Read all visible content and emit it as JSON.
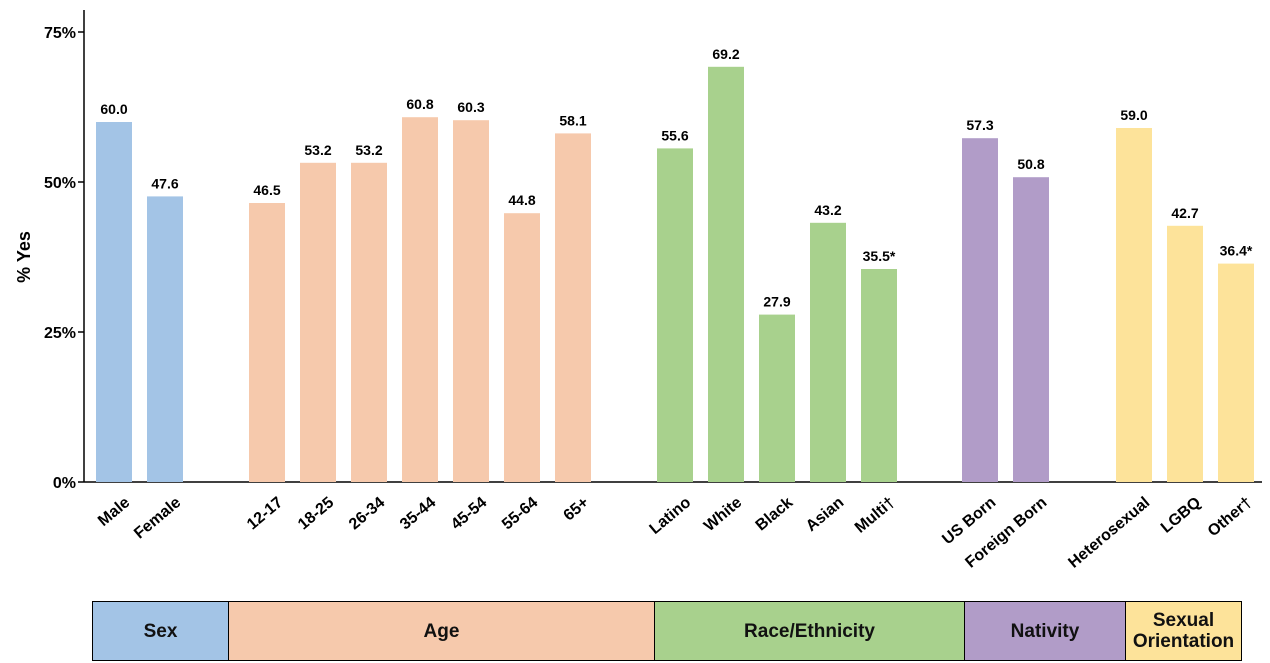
{
  "chart_data": {
    "type": "bar",
    "ylabel": "% Yes",
    "ylim": [
      0,
      75
    ],
    "yticks": [
      0,
      25,
      50,
      75
    ],
    "ytick_labels": [
      "0%",
      "25%",
      "50%",
      "75%"
    ],
    "grid": false,
    "groups": [
      {
        "name": "Sex",
        "color": "#a3c4e6",
        "categories": [
          "Male",
          "Female"
        ],
        "values": [
          60.0,
          47.6
        ],
        "value_labels": [
          "60.0",
          "47.6"
        ]
      },
      {
        "name": "Age",
        "color": "#f6c9ac",
        "categories": [
          "12-17",
          "18-25",
          "26-34",
          "35-44",
          "45-54",
          "55-64",
          "65+"
        ],
        "values": [
          46.5,
          53.2,
          53.2,
          60.8,
          60.3,
          44.8,
          58.1
        ],
        "value_labels": [
          "46.5",
          "53.2",
          "53.2",
          "60.8",
          "60.3",
          "44.8",
          "58.1"
        ]
      },
      {
        "name": "Race/Ethnicity",
        "color": "#a8d18d",
        "categories": [
          "Latino",
          "White",
          "Black",
          "Asian",
          "Multi†"
        ],
        "values": [
          55.6,
          69.2,
          27.9,
          43.2,
          35.5
        ],
        "value_labels": [
          "55.6",
          "69.2",
          "27.9",
          "43.2",
          "35.5*"
        ]
      },
      {
        "name": "Nativity",
        "color": "#b19cc8",
        "categories": [
          "US Born",
          "Foreign Born"
        ],
        "values": [
          57.3,
          50.8
        ],
        "value_labels": [
          "57.3",
          "50.8"
        ]
      },
      {
        "name": "Sexual Orientation",
        "color": "#fde39a",
        "categories": [
          "Heterosexual",
          "LGBQ",
          "Other†"
        ],
        "values": [
          59.0,
          42.7,
          36.4
        ],
        "value_labels": [
          "59.0",
          "42.7",
          "36.4*"
        ]
      }
    ]
  }
}
